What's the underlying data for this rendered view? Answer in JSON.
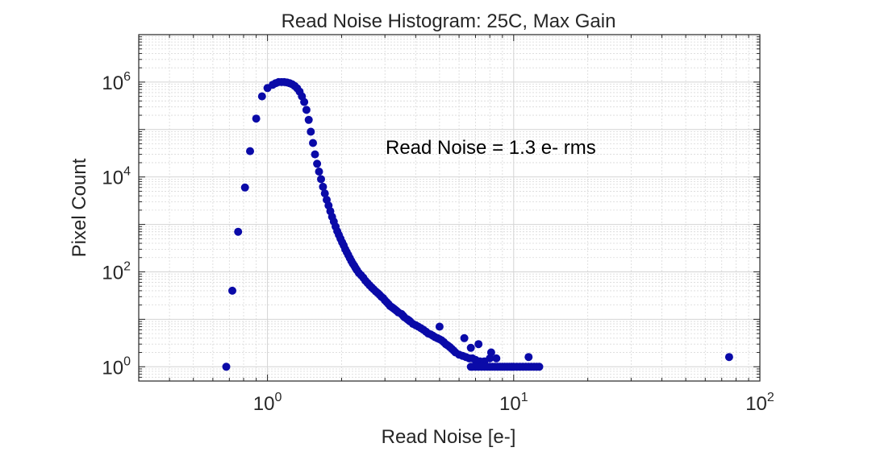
{
  "chart_data": {
    "type": "scatter",
    "title": "Read Noise Histogram: 25C, Max Gain",
    "xlabel": "Read Noise [e-]",
    "ylabel": "Pixel Count",
    "xscale": "log",
    "yscale": "log",
    "xlim": [
      0.3,
      100
    ],
    "ylim": [
      0.5,
      10000000
    ],
    "grid": true,
    "x_ticks": [
      {
        "base": "10",
        "exp": "0",
        "value": 1
      },
      {
        "base": "10",
        "exp": "1",
        "value": 10
      },
      {
        "base": "10",
        "exp": "2",
        "value": 100
      }
    ],
    "y_ticks": [
      {
        "base": "10",
        "exp": "0",
        "value": 1
      },
      {
        "base": "10",
        "exp": "2",
        "value": 100
      },
      {
        "base": "10",
        "exp": "4",
        "value": 10000
      },
      {
        "base": "10",
        "exp": "6",
        "value": 1000000
      }
    ],
    "annotation": "Read Noise = 1.3 e- rms",
    "marker_color": "#0a0aa8",
    "x": [
      0.68,
      0.72,
      0.76,
      0.81,
      0.85,
      0.9,
      0.95,
      1.0,
      1.05,
      1.08,
      1.11,
      1.14,
      1.17,
      1.2,
      1.23,
      1.26,
      1.29,
      1.32,
      1.35,
      1.38,
      1.41,
      1.44,
      1.47,
      1.5,
      1.53,
      1.56,
      1.59,
      1.62,
      1.65,
      1.68,
      1.71,
      1.74,
      1.77,
      1.8,
      1.83,
      1.86,
      1.89,
      1.92,
      1.95,
      1.98,
      2.01,
      2.04,
      2.07,
      2.1,
      2.13,
      2.16,
      2.19,
      2.22,
      2.25,
      2.28,
      2.31,
      2.35,
      2.4,
      2.45,
      2.5,
      2.55,
      2.6,
      2.65,
      2.7,
      2.75,
      2.8,
      2.85,
      2.9,
      2.95,
      3.0,
      3.05,
      3.1,
      3.15,
      3.2,
      3.25,
      3.3,
      3.35,
      3.4,
      3.5,
      3.55,
      3.6,
      3.7,
      3.75,
      3.8,
      3.9,
      4.0,
      4.1,
      4.2,
      4.3,
      4.4,
      4.5,
      4.6,
      4.7,
      4.8,
      4.9,
      5.0,
      5.1,
      5.2,
      5.3,
      5.4,
      5.5,
      5.6,
      5.7,
      5.8,
      6.0,
      6.2,
      6.4,
      6.6,
      6.8,
      7.0,
      7.3,
      7.6,
      8.0,
      8.5,
      5.0,
      6.3,
      7.2,
      8.1,
      6.7,
      6.7,
      6.8,
      7.0,
      7.2,
      7.4,
      7.6,
      7.8,
      8.0,
      8.2,
      8.4,
      8.6,
      8.8,
      9.0,
      9.2,
      9.4,
      9.6,
      9.8,
      10.0,
      10.3,
      10.6,
      10.9,
      11.2,
      11.5,
      11.8,
      12.1,
      12.4,
      12.7,
      11.5,
      75
    ],
    "y": [
      1,
      40,
      700,
      6000,
      35000,
      170000,
      500000,
      750000,
      880000,
      950000,
      1000000,
      1000000,
      1000000,
      980000,
      950000,
      900000,
      830000,
      740000,
      630000,
      500000,
      380000,
      260000,
      160000,
      90000,
      52000,
      30000,
      19000,
      13000,
      9000,
      6200,
      4500,
      3300,
      2500,
      1900,
      1450,
      1150,
      900,
      720,
      600,
      500,
      420,
      360,
      300,
      260,
      225,
      195,
      170,
      150,
      135,
      120,
      108,
      95,
      85,
      75,
      65,
      58,
      52,
      47,
      43,
      39,
      36,
      33,
      30,
      28,
      25,
      23,
      21,
      19,
      18,
      17,
      16,
      15,
      14,
      13,
      12,
      11,
      10,
      9.5,
      9,
      8,
      7.5,
      7,
      6.5,
      6,
      5.5,
      5,
      4.8,
      4.5,
      4.2,
      4,
      3.8,
      3.6,
      3.3,
      3,
      2.8,
      2.6,
      2.4,
      2.2,
      2,
      1.8,
      1.7,
      1.6,
      1.5,
      1.5,
      1.4,
      1.3,
      1.3,
      1.5,
      1.5,
      7,
      4,
      3,
      2,
      2.5,
      1,
      1,
      1,
      1,
      1,
      1,
      1,
      1,
      1,
      1,
      1,
      1,
      1,
      1,
      1,
      1,
      1,
      1,
      1,
      1,
      1,
      1,
      1,
      1,
      1,
      1,
      1,
      1.6,
      1.6
    ]
  }
}
